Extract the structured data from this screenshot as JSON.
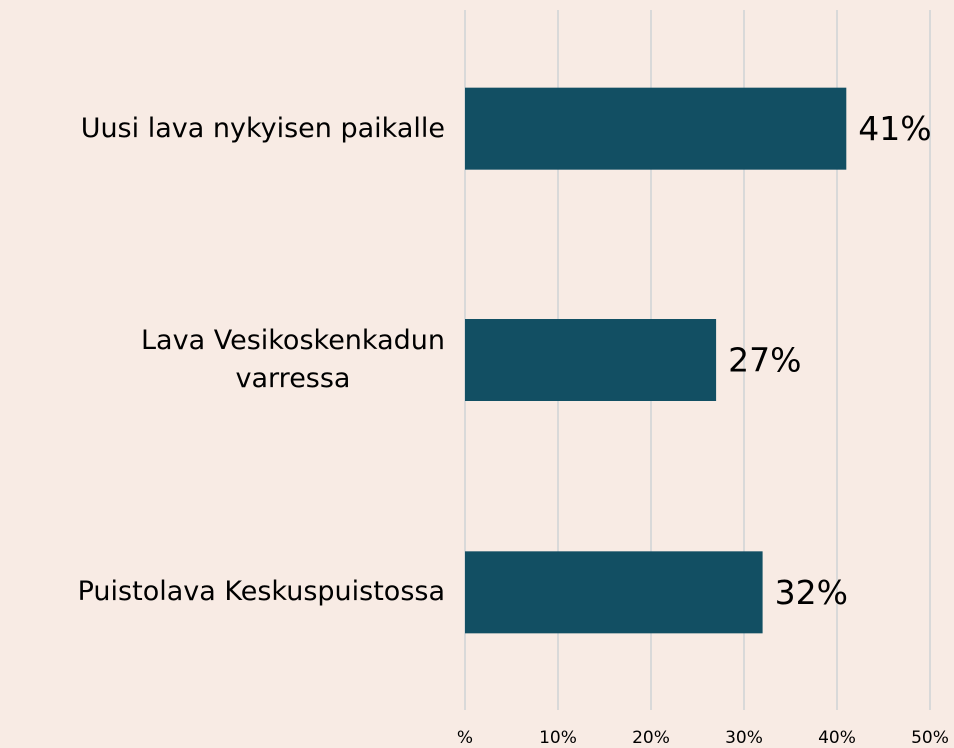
{
  "chart_data": {
    "type": "bar",
    "orientation": "horizontal",
    "categories": [
      "Uusi lava nykyisen paikalle",
      "Lava Vesikoskenkadun\nvarressa",
      "Puistolava Keskuspuistossa"
    ],
    "values": [
      41,
      27,
      32
    ],
    "value_labels": [
      "41%",
      "27%",
      "32%"
    ],
    "color": "#124f63",
    "xlim": [
      0,
      50
    ],
    "xticks": [
      {
        "value": 0,
        "label": "%"
      },
      {
        "value": 10,
        "label": "10%"
      },
      {
        "value": 20,
        "label": "20%"
      },
      {
        "value": 30,
        "label": "30%"
      },
      {
        "value": 40,
        "label": "40%"
      },
      {
        "value": 50,
        "label": "50%"
      }
    ],
    "grid": true
  }
}
